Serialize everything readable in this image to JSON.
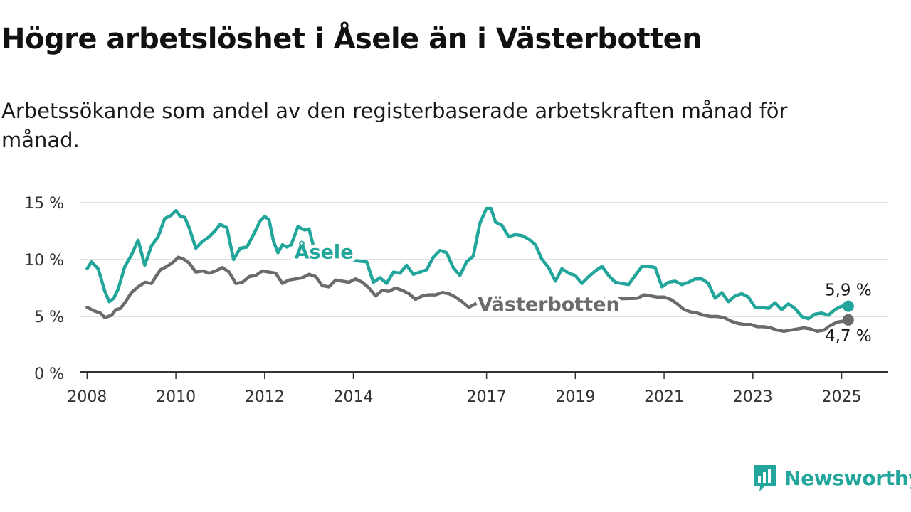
{
  "header": {
    "title": "Högre arbetslöshet i Åsele än i Västerbotten",
    "subtitle": "Arbetssökande som andel av den registerbaserade arbetskraften månad för månad."
  },
  "brand": {
    "name": "Newsworthy"
  },
  "chart_data": {
    "type": "line",
    "y_unit": "%",
    "ylim": [
      0,
      15
    ],
    "y_ticks": [
      0,
      5,
      10,
      15
    ],
    "y_tick_labels": [
      "0 %",
      "5 %",
      "10 %",
      "15 %"
    ],
    "xlim": [
      2007.85,
      2026.05
    ],
    "x_ticks": [
      2008,
      2010,
      2012,
      2014,
      2017,
      2019,
      2021,
      2023,
      2025
    ],
    "x_tick_labels": [
      "2008",
      "2010",
      "2012",
      "2014",
      "2017",
      "2019",
      "2021",
      "2023",
      "2025"
    ],
    "grid": "horizontal",
    "series": [
      {
        "name": "Åsele",
        "color": "#22a59b",
        "end_label": "5,9 %",
        "x": [
          2008.0,
          2008.1,
          2008.25,
          2008.4,
          2008.5,
          2008.6,
          2008.7,
          2008.85,
          2009.0,
          2009.15,
          2009.3,
          2009.45,
          2009.6,
          2009.75,
          2009.9,
          2010.0,
          2010.1,
          2010.2,
          2010.3,
          2010.45,
          2010.6,
          2010.75,
          2010.9,
          2011.0,
          2011.15,
          2011.3,
          2011.45,
          2011.6,
          2011.75,
          2011.9,
          2012.0,
          2012.1,
          2012.2,
          2012.3,
          2012.4,
          2012.5,
          2012.6,
          2012.75,
          2012.9,
          2013.0,
          2013.15,
          2013.3,
          2014.3,
          2014.45,
          2014.6,
          2014.75,
          2014.9,
          2015.05,
          2015.2,
          2015.35,
          2015.5,
          2015.65,
          2015.8,
          2015.95,
          2016.1,
          2016.25,
          2016.4,
          2016.55,
          2016.7,
          2016.85,
          2017.0,
          2017.1,
          2017.2,
          2017.35,
          2017.5,
          2017.65,
          2017.8,
          2017.95,
          2018.1,
          2018.25,
          2018.4,
          2018.55,
          2018.7,
          2018.85,
          2019.0,
          2019.15,
          2019.3,
          2019.45,
          2019.6,
          2019.75,
          2019.9,
          2020.05,
          2020.2,
          2020.35,
          2020.5,
          2020.65,
          2020.8,
          2020.95,
          2021.1,
          2021.25,
          2021.4,
          2021.55,
          2021.7,
          2021.85,
          2022.0,
          2022.15,
          2022.3,
          2022.45,
          2022.6,
          2022.75,
          2022.9,
          2023.05,
          2023.2,
          2023.35,
          2023.5,
          2023.65,
          2023.8,
          2023.95,
          2024.1,
          2024.25,
          2024.4,
          2024.55,
          2024.7,
          2024.85,
          2025.0,
          2025.15
        ],
        "y": [
          9.2,
          9.8,
          9.2,
          7.2,
          6.3,
          6.6,
          7.4,
          9.4,
          10.4,
          11.7,
          9.5,
          11.2,
          12.0,
          13.6,
          13.9,
          14.3,
          13.8,
          13.7,
          12.8,
          11.0,
          11.6,
          12.0,
          12.6,
          13.1,
          12.8,
          10.0,
          11.0,
          11.1,
          12.2,
          13.4,
          13.8,
          13.5,
          11.6,
          10.6,
          11.3,
          11.1,
          11.3,
          12.9,
          12.6,
          12.7,
          10.4,
          10.2,
          9.8,
          8.0,
          8.4,
          7.9,
          8.9,
          8.8,
          9.5,
          8.7,
          8.9,
          9.1,
          10.2,
          10.8,
          10.6,
          9.3,
          8.6,
          9.8,
          10.3,
          13.2,
          14.5,
          14.5,
          13.3,
          13.0,
          12.0,
          12.2,
          12.1,
          11.8,
          11.3,
          10.0,
          9.3,
          8.1,
          9.2,
          8.8,
          8.6,
          7.9,
          8.5,
          9.0,
          9.4,
          8.6,
          8.0,
          7.9,
          7.8,
          8.6,
          9.4,
          9.4,
          9.3,
          7.6,
          8.0,
          8.1,
          7.8,
          8.0,
          8.3,
          8.3,
          7.9,
          6.6,
          7.1,
          6.3,
          6.8,
          7.0,
          6.7,
          5.8,
          5.8,
          5.7,
          6.2,
          5.6,
          6.1,
          5.7,
          5.0,
          4.8,
          5.2,
          5.3,
          5.1,
          5.6,
          5.9,
          5.9
        ]
      },
      {
        "name": "Västerbotten",
        "color": "#6b6b6d",
        "end_label": "4,7 %",
        "x": [
          2008.0,
          2008.15,
          2008.3,
          2008.4,
          2008.55,
          2008.65,
          2008.75,
          2008.85,
          2009.0,
          2009.15,
          2009.3,
          2009.45,
          2009.55,
          2009.65,
          2009.8,
          2009.95,
          2010.05,
          2010.15,
          2010.3,
          2010.45,
          2010.6,
          2010.75,
          2010.9,
          2011.05,
          2011.2,
          2011.35,
          2011.5,
          2011.65,
          2011.8,
          2011.95,
          2012.1,
          2012.25,
          2012.4,
          2012.55,
          2012.7,
          2012.85,
          2013.0,
          2013.15,
          2013.3,
          2013.45,
          2013.6,
          2013.75,
          2013.9,
          2014.05,
          2014.2,
          2014.35,
          2014.5,
          2014.65,
          2014.8,
          2014.95,
          2015.1,
          2015.25,
          2015.4,
          2015.55,
          2015.7,
          2015.85,
          2016.0,
          2016.15,
          2016.3,
          2016.45,
          2016.6,
          2016.75,
          2016.9,
          2017.05,
          2017.2,
          2017.35,
          2017.5,
          2017.65,
          2017.8,
          2020.4,
          2020.55,
          2020.7,
          2020.85,
          2021.0,
          2021.15,
          2021.3,
          2021.45,
          2021.6,
          2021.75,
          2021.9,
          2022.05,
          2022.2,
          2022.35,
          2022.5,
          2022.65,
          2022.8,
          2022.95,
          2023.1,
          2023.25,
          2023.4,
          2023.55,
          2023.7,
          2023.85,
          2024.0,
          2024.15,
          2024.3,
          2024.45,
          2024.6,
          2024.75,
          2024.9,
          2025.05,
          2025.15
        ],
        "y": [
          5.8,
          5.5,
          5.3,
          4.9,
          5.1,
          5.6,
          5.7,
          6.2,
          7.1,
          7.6,
          8.0,
          7.9,
          8.5,
          9.1,
          9.4,
          9.8,
          10.2,
          10.1,
          9.7,
          8.9,
          9.0,
          8.8,
          9.0,
          9.3,
          8.9,
          7.9,
          8.0,
          8.5,
          8.6,
          9.0,
          8.9,
          8.8,
          7.9,
          8.2,
          8.3,
          8.4,
          8.7,
          8.5,
          7.7,
          7.6,
          8.2,
          8.1,
          8.0,
          8.3,
          8.0,
          7.5,
          6.8,
          7.3,
          7.2,
          7.5,
          7.3,
          7.0,
          6.5,
          6.8,
          6.9,
          6.9,
          7.1,
          7.0,
          6.7,
          6.3,
          5.8,
          6.1,
          6.3,
          6.6,
          6.7,
          6.5,
          5.9,
          6.0,
          6.3,
          6.6,
          6.9,
          6.8,
          6.7,
          6.7,
          6.5,
          6.1,
          5.6,
          5.4,
          5.3,
          5.1,
          5.0,
          5.0,
          4.9,
          4.6,
          4.4,
          4.3,
          4.3,
          4.1,
          4.1,
          4.0,
          3.8,
          3.7,
          3.8,
          3.9,
          4.0,
          3.9,
          3.7,
          3.8,
          4.2,
          4.5,
          4.6,
          4.7
        ]
      }
    ]
  }
}
